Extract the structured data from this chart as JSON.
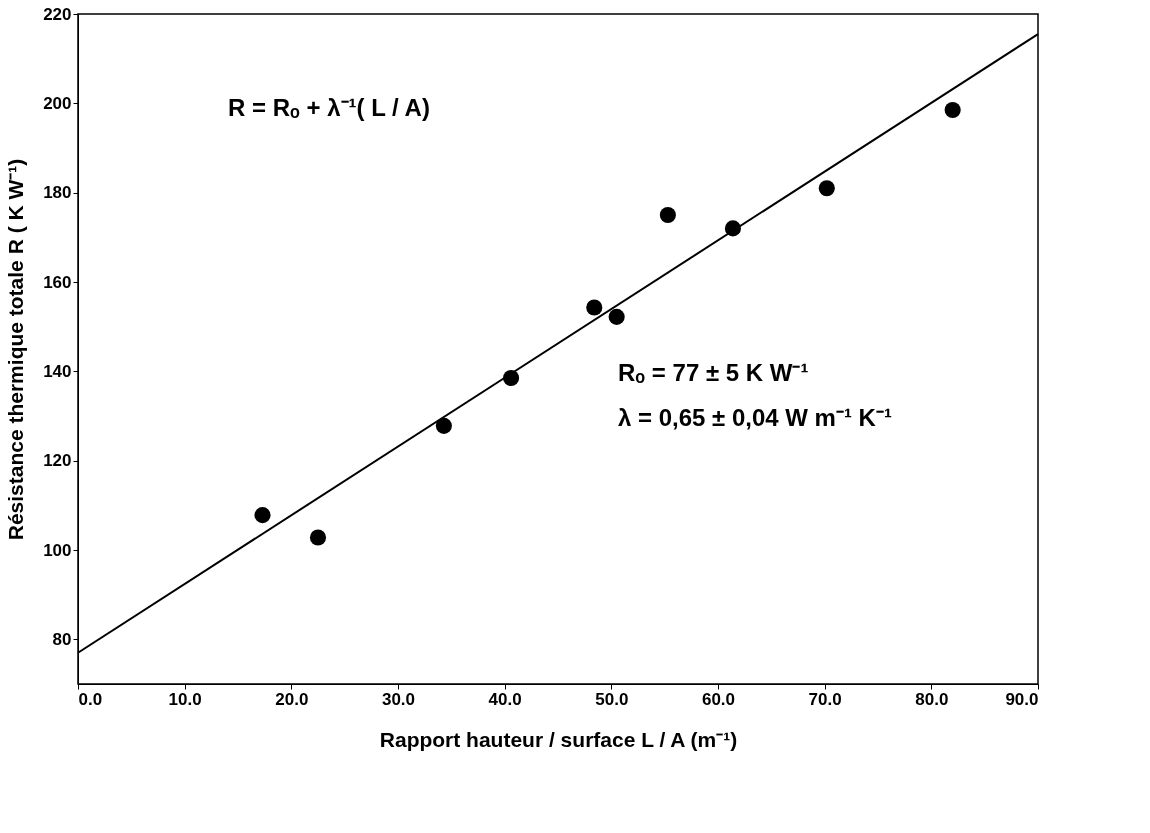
{
  "chart_data": {
    "type": "scatter",
    "xlabel": "Rapport  hauteur / surface   L / A  (m⁻¹)",
    "ylabel": "Résistance thermique totale R  ( K W⁻¹)",
    "xlim": [
      0,
      90
    ],
    "ylim": [
      70,
      220
    ],
    "xticks": [
      {
        "value": 0,
        "label": "0.0"
      },
      {
        "value": 10,
        "label": "10.0"
      },
      {
        "value": 20,
        "label": "20.0"
      },
      {
        "value": 30,
        "label": "30.0"
      },
      {
        "value": 40,
        "label": "40.0"
      },
      {
        "value": 50,
        "label": "50.0"
      },
      {
        "value": 60,
        "label": "60.0"
      },
      {
        "value": 70,
        "label": "70.0"
      },
      {
        "value": 80,
        "label": "80.0"
      },
      {
        "value": 90,
        "label": "90.0"
      }
    ],
    "yticks": [
      80,
      100,
      120,
      140,
      160,
      180,
      200,
      220
    ],
    "grid": false,
    "series": [
      {
        "marker": "circle",
        "color": "#000000",
        "x": [
          17.3,
          22.5,
          34.3,
          40.6,
          48.4,
          50.5,
          55.3,
          61.4,
          70.2,
          82.0
        ],
        "values": [
          107.8,
          102.8,
          127.8,
          138.5,
          154.3,
          152.2,
          175,
          172,
          181,
          198.5
        ]
      },
      {
        "type": "line",
        "line_style": "solid",
        "color": "#000000",
        "x": [
          0,
          90
        ],
        "values": [
          77,
          215.5
        ]
      }
    ],
    "annotations": [
      "R = Rₒ + λ⁻¹( L / A)",
      "Rₒ = 77 ± 5 K W⁻¹",
      "λ = 0,65 ± 0,04 W m⁻¹ K⁻¹"
    ]
  }
}
